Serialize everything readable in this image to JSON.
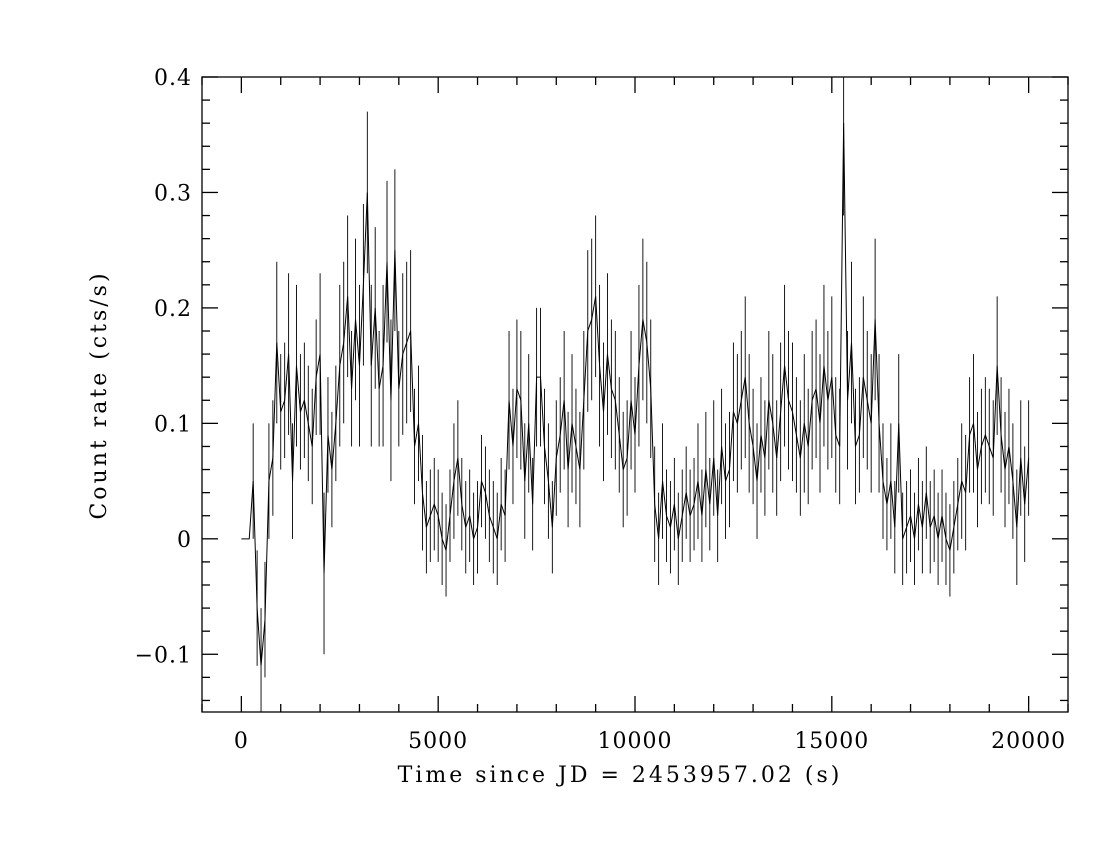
{
  "chart_data": {
    "type": "errorbar_line",
    "xlabel": "Time since JD = 2453957.02 (s)",
    "ylabel": "Count rate (cts/s)",
    "color": "#000000",
    "xlim": [
      -1000,
      21000
    ],
    "ylim": [
      -0.15,
      0.4
    ],
    "xticks": [
      0,
      5000,
      10000,
      15000,
      20000
    ],
    "yticks": [
      {
        "value": -0.1,
        "label": "−0.1"
      },
      0,
      0.1,
      0.2,
      0.3,
      0.4
    ],
    "xminorticks": [
      -1000,
      1000,
      2000,
      3000,
      4000,
      6000,
      7000,
      8000,
      9000,
      11000,
      12000,
      13000,
      14000,
      16000,
      17000,
      18000,
      19000,
      21000
    ],
    "yminorticks": [
      -0.14,
      -0.12,
      -0.08,
      -0.06,
      -0.04,
      -0.02,
      0.02,
      0.04,
      0.06,
      0.08,
      0.12,
      0.14,
      0.16,
      0.18,
      0.22,
      0.24,
      0.26,
      0.28,
      0.32,
      0.34,
      0.36,
      0.38
    ],
    "mirror_ticks": true,
    "x": [
      0,
      100,
      200,
      300,
      400,
      500,
      600,
      700,
      800,
      900,
      1000,
      1100,
      1200,
      1300,
      1400,
      1500,
      1600,
      1700,
      1800,
      1900,
      2000,
      2100,
      2200,
      2300,
      2400,
      2500,
      2600,
      2700,
      2800,
      2900,
      3000,
      3100,
      3200,
      3300,
      3400,
      3500,
      3600,
      3700,
      3800,
      3900,
      4000,
      4100,
      4200,
      4300,
      4400,
      4500,
      4600,
      4700,
      4800,
      4900,
      5000,
      5100,
      5200,
      5300,
      5400,
      5500,
      5600,
      5700,
      5800,
      5900,
      6000,
      6100,
      6200,
      6300,
      6400,
      6500,
      6600,
      6700,
      6800,
      6900,
      7000,
      7100,
      7200,
      7300,
      7400,
      7500,
      7600,
      7700,
      7800,
      7900,
      8000,
      8100,
      8200,
      8300,
      8400,
      8500,
      8600,
      8700,
      8800,
      8900,
      9000,
      9100,
      9200,
      9300,
      9400,
      9500,
      9600,
      9700,
      9800,
      9900,
      10000,
      10100,
      10200,
      10300,
      10400,
      10500,
      10600,
      10700,
      10800,
      10900,
      11000,
      11100,
      11200,
      11300,
      11400,
      11500,
      11600,
      11700,
      11800,
      11900,
      12000,
      12100,
      12200,
      12300,
      12400,
      12500,
      12600,
      12700,
      12800,
      12900,
      13000,
      13100,
      13200,
      13300,
      13400,
      13500,
      13600,
      13700,
      13800,
      13900,
      14000,
      14100,
      14200,
      14300,
      14400,
      14500,
      14600,
      14700,
      14800,
      14900,
      15000,
      15100,
      15200,
      15300,
      15400,
      15500,
      15600,
      15700,
      15800,
      15900,
      16000,
      16100,
      16200,
      16300,
      16400,
      16500,
      16600,
      16700,
      16800,
      16900,
      17000,
      17100,
      17200,
      17300,
      17400,
      17500,
      17600,
      17700,
      17800,
      17900,
      18000,
      18100,
      18200,
      18300,
      18400,
      18500,
      18600,
      18700,
      18800,
      18900,
      19000,
      19100,
      19200,
      19300,
      19400,
      19500,
      19600,
      19700,
      19800,
      19900,
      20000
    ],
    "values": [
      0,
      0,
      0,
      0.05,
      -0.06,
      -0.11,
      -0.07,
      0.05,
      0.07,
      0.17,
      0.11,
      0.12,
      0.16,
      0.05,
      0.15,
      0.11,
      0.12,
      0.1,
      0.08,
      0.14,
      0.16,
      -0.03,
      0.09,
      0.06,
      0.1,
      0.15,
      0.17,
      0.21,
      0.13,
      0.19,
      0.15,
      0.22,
      0.3,
      0.15,
      0.2,
      0.13,
      0.15,
      0.24,
      0.12,
      0.25,
      0.13,
      0.16,
      0.17,
      0.18,
      0.08,
      0.1,
      0.04,
      0.01,
      0.02,
      0.03,
      0.02,
      0,
      -0.01,
      0.02,
      0.05,
      0.07,
      0.03,
      0.01,
      0.02,
      0,
      0.01,
      0.05,
      0.04,
      0.02,
      0.01,
      0,
      0.03,
      0.02,
      0.12,
      0.08,
      0.13,
      0.12,
      0.05,
      0.1,
      0.03,
      0.14,
      0.14,
      0.08,
      0.05,
      0.01,
      0.07,
      0.09,
      0.12,
      0.06,
      0.1,
      0.08,
      0.06,
      0.12,
      0.18,
      0.19,
      0.21,
      0.15,
      0.11,
      0.16,
      0.13,
      0.12,
      0.09,
      0.06,
      0.07,
      0.12,
      0.09,
      0.15,
      0.19,
      0.17,
      0.13,
      0.03,
      0,
      0.05,
      0.02,
      0.01,
      0.03,
      0,
      0.02,
      0.04,
      0.02,
      0.03,
      0.05,
      0.02,
      0.06,
      0.03,
      0.07,
      0.02,
      0.08,
      0.05,
      0.06,
      0.11,
      0.1,
      0.12,
      0.14,
      0.1,
      0.08,
      0.05,
      0.09,
      0.07,
      0.12,
      0.1,
      0.07,
      0.11,
      0.15,
      0.12,
      0.11,
      0.09,
      0.07,
      0.1,
      0.08,
      0.12,
      0.13,
      0.1,
      0.15,
      0.12,
      0.14,
      0.09,
      0.08,
      0.36,
      0.12,
      0.17,
      0.08,
      0.09,
      0.14,
      0.12,
      0.1,
      0.19,
      0.1,
      0.05,
      0.03,
      0.05,
      0.01,
      0.1,
      0,
      0.01,
      0.02,
      0,
      0.03,
      0.01,
      0.04,
      0.01,
      0.02,
      0,
      0.02,
      0,
      -0.01,
      0.01,
      0.03,
      0.05,
      0.04,
      0.09,
      0.1,
      0.06,
      0.08,
      0.09,
      0.08,
      0.07,
      0.15,
      0.09,
      0.06,
      0.08,
      0.05,
      0.01,
      0.07,
      0.03,
      0.07
    ],
    "errors": [
      0,
      0,
      0,
      0.05,
      0.05,
      0.05,
      0.05,
      0.05,
      0.05,
      0.07,
      0.05,
      0.05,
      0.07,
      0.05,
      0.07,
      0.05,
      0.05,
      0.05,
      0.05,
      0.05,
      0.07,
      0.07,
      0.05,
      0.05,
      0.05,
      0.07,
      0.07,
      0.07,
      0.05,
      0.07,
      0.07,
      0.07,
      0.07,
      0.07,
      0.07,
      0.05,
      0.07,
      0.07,
      0.07,
      0.07,
      0.05,
      0.07,
      0.07,
      0.07,
      0.05,
      0.05,
      0.05,
      0.04,
      0.04,
      0.04,
      0.04,
      0.04,
      0.04,
      0.04,
      0.05,
      0.05,
      0.04,
      0.04,
      0.04,
      0.04,
      0.04,
      0.04,
      0.04,
      0.04,
      0.04,
      0.04,
      0.04,
      0.04,
      0.06,
      0.05,
      0.06,
      0.06,
      0.05,
      0.06,
      0.04,
      0.06,
      0.06,
      0.05,
      0.05,
      0.04,
      0.05,
      0.05,
      0.06,
      0.05,
      0.06,
      0.05,
      0.05,
      0.06,
      0.07,
      0.07,
      0.07,
      0.07,
      0.06,
      0.07,
      0.06,
      0.06,
      0.05,
      0.05,
      0.05,
      0.06,
      0.05,
      0.07,
      0.07,
      0.07,
      0.06,
      0.05,
      0.04,
      0.05,
      0.04,
      0.04,
      0.04,
      0.04,
      0.04,
      0.04,
      0.04,
      0.04,
      0.05,
      0.04,
      0.05,
      0.04,
      0.05,
      0.04,
      0.05,
      0.05,
      0.05,
      0.06,
      0.06,
      0.06,
      0.07,
      0.06,
      0.05,
      0.05,
      0.05,
      0.05,
      0.06,
      0.06,
      0.05,
      0.06,
      0.07,
      0.06,
      0.06,
      0.05,
      0.05,
      0.06,
      0.05,
      0.06,
      0.06,
      0.06,
      0.07,
      0.06,
      0.07,
      0.05,
      0.05,
      0.08,
      0.06,
      0.07,
      0.05,
      0.05,
      0.07,
      0.06,
      0.06,
      0.07,
      0.06,
      0.05,
      0.04,
      0.05,
      0.04,
      0.06,
      0.04,
      0.04,
      0.04,
      0.04,
      0.04,
      0.04,
      0.04,
      0.04,
      0.04,
      0.04,
      0.04,
      0.04,
      0.04,
      0.04,
      0.04,
      0.05,
      0.05,
      0.05,
      0.06,
      0.05,
      0.05,
      0.05,
      0.05,
      0.05,
      0.06,
      0.05,
      0.05,
      0.05,
      0.05,
      0.05,
      0.05,
      0.05,
      0.05
    ]
  }
}
